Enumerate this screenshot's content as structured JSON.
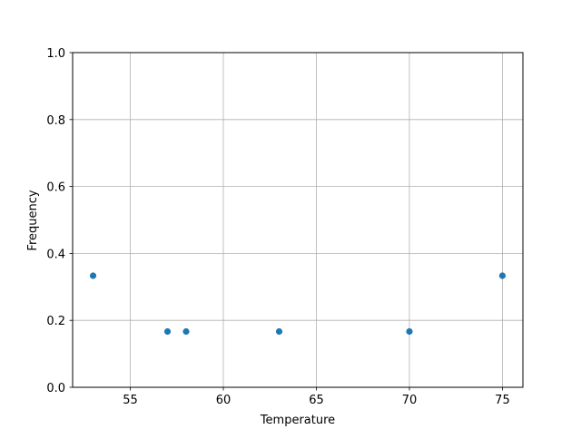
{
  "chart_data": {
    "type": "scatter",
    "title": "",
    "xlabel": "Temperature",
    "ylabel": "Frequency",
    "xlim": [
      51.9,
      76.1
    ],
    "ylim": [
      0.0,
      1.0
    ],
    "xticks": [
      55,
      60,
      65,
      70,
      75
    ],
    "xtick_labels": [
      "55",
      "60",
      "65",
      "70",
      "75"
    ],
    "yticks": [
      0.0,
      0.2,
      0.4,
      0.6,
      0.8,
      1.0
    ],
    "ytick_labels": [
      "0.0",
      "0.2",
      "0.4",
      "0.6",
      "0.8",
      "1.0"
    ],
    "grid": true,
    "marker_color": "#1f77b4",
    "grid_color": "#b0b0b0",
    "points": [
      {
        "x": 53,
        "y": 0.3333
      },
      {
        "x": 57,
        "y": 0.1667
      },
      {
        "x": 58,
        "y": 0.1667
      },
      {
        "x": 63,
        "y": 0.1667
      },
      {
        "x": 70,
        "y": 0.1667
      },
      {
        "x": 75,
        "y": 0.3333
      }
    ]
  }
}
